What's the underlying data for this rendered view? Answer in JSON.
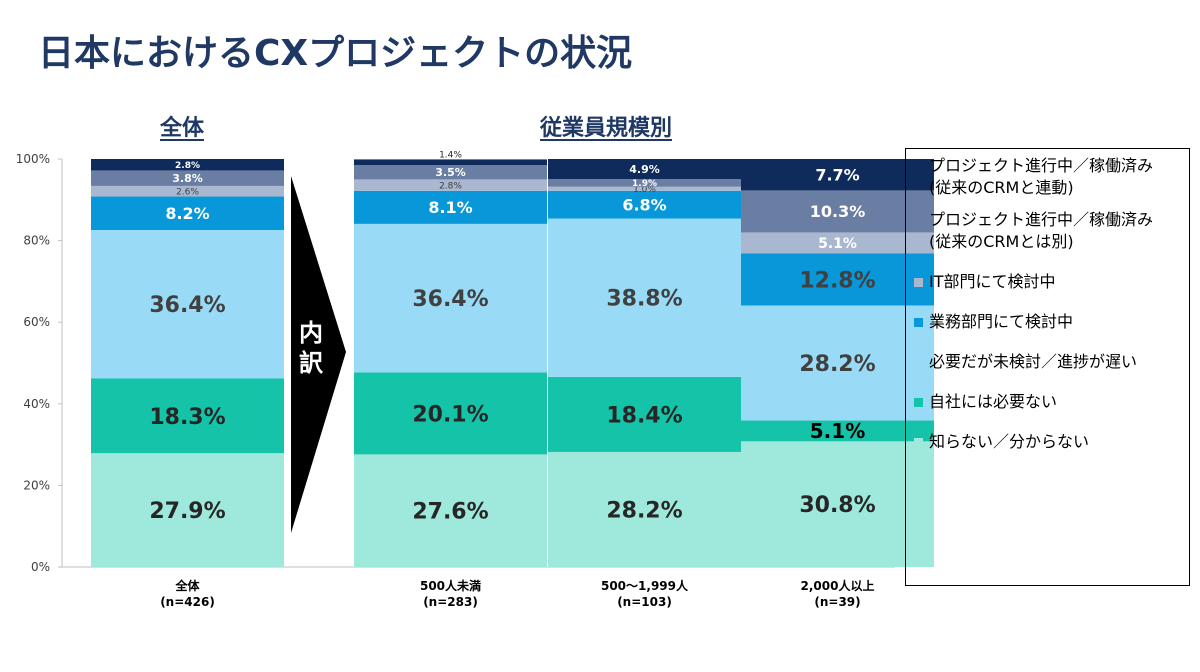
{
  "title": "日本におけるCXプロジェクトの状況",
  "overall_title": "全体",
  "scale_title": "従業員規模別",
  "arrow_label": "内\n訳",
  "chart_data": {
    "type": "bar",
    "stacked": true,
    "ylim": [
      0,
      100
    ],
    "yticks": [
      "0%",
      "20%",
      "40%",
      "60%",
      "80%",
      "100%"
    ],
    "categories": [
      {
        "label": "全体",
        "n": "(n=426)"
      },
      {
        "label": "500人未満",
        "n": "(n=283)"
      },
      {
        "label": "500〜1,999人",
        "n": "(n=103)"
      },
      {
        "label": "2,000人以上",
        "n": "(n=39)"
      }
    ],
    "series": [
      {
        "name": "知らない／分からない",
        "color": "#9ee8dc",
        "values": [
          27.9,
          27.6,
          28.2,
          30.8
        ],
        "labels": [
          "27.9%",
          "27.6%",
          "28.2%",
          "30.8%"
        ]
      },
      {
        "name": "自社には必要ない",
        "color": "#14c3a8",
        "values": [
          18.3,
          20.1,
          18.4,
          5.1
        ],
        "labels": [
          "18.3%",
          "20.1%",
          "18.4%",
          "5.1%"
        ]
      },
      {
        "name": "必要だが未検討／進捗が遅い",
        "color": "#99dbf6",
        "values": [
          36.4,
          36.4,
          38.8,
          28.2
        ],
        "labels": [
          "36.4%",
          "36.4%",
          "38.8%",
          "28.2%"
        ]
      },
      {
        "name": "業務部門にて検討中",
        "color": "#0897d8",
        "values": [
          8.2,
          8.1,
          6.8,
          12.8
        ],
        "labels": [
          "8.2%",
          "8.1%",
          "6.8%",
          "12.8%"
        ]
      },
      {
        "name": "IT部門にて検討中",
        "color": "#a9b8d0",
        "values": [
          2.6,
          2.8,
          1.0,
          5.1
        ],
        "labels": [
          "2.6%",
          "2.8%",
          "1.0%",
          "5.1%"
        ]
      },
      {
        "name": "プロジェクト進行中／稼働済み\n(従来のCRMとは別)",
        "color": "#6a7ea3",
        "values": [
          3.8,
          3.5,
          1.9,
          10.3
        ],
        "labels": [
          "3.8%",
          "3.5%",
          "1.9%",
          "10.3%"
        ]
      },
      {
        "name": "プロジェクト進行中／稼働済み\n(従来のCRMと連動)",
        "color": "#0e2b5c",
        "values": [
          2.8,
          1.4,
          4.9,
          7.7
        ],
        "labels": [
          "2.8%",
          "1.4%",
          "4.9%",
          "7.7%"
        ]
      }
    ]
  }
}
